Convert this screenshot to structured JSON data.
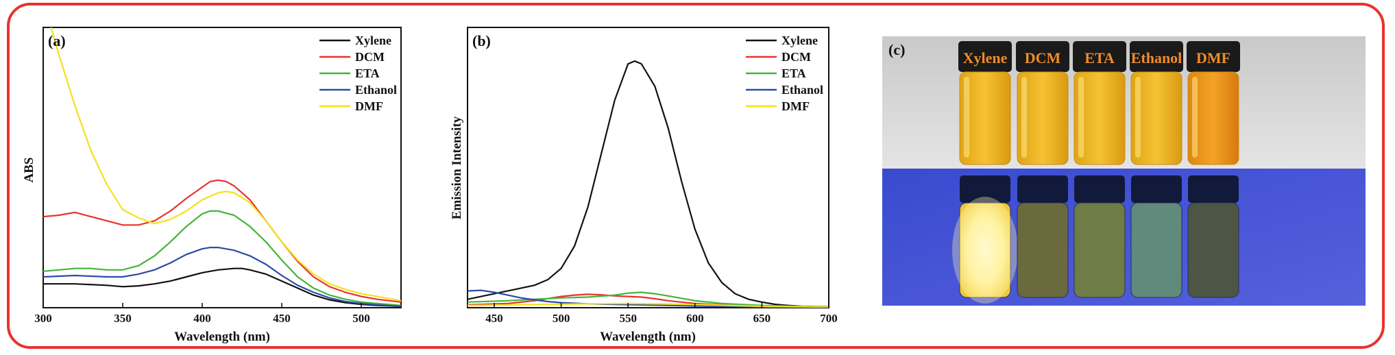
{
  "colors": {
    "Xylene": "#111111",
    "DCM": "#e8322f",
    "ETA": "#45b33a",
    "Ethanol": "#2d4aa6",
    "DMF": "#f2e21b",
    "frame": "#e8322f"
  },
  "chart_data": [
    {
      "type": "line",
      "panel_label": "(a)",
      "xlabel": "Wavelength (nm)",
      "ylabel": "ABS",
      "xlim": [
        300,
        525
      ],
      "ylim": [
        0,
        1.0
      ],
      "xticks": [
        300,
        350,
        400,
        450,
        500
      ],
      "yticks_shown": false,
      "legend_position": "top-right",
      "series": [
        {
          "name": "Xylene",
          "x": [
            300,
            320,
            340,
            350,
            360,
            370,
            380,
            390,
            400,
            410,
            420,
            425,
            430,
            440,
            450,
            460,
            470,
            480,
            490,
            500,
            510,
            525
          ],
          "y": [
            0.085,
            0.085,
            0.08,
            0.075,
            0.078,
            0.085,
            0.095,
            0.11,
            0.125,
            0.135,
            0.14,
            0.14,
            0.135,
            0.12,
            0.095,
            0.07,
            0.045,
            0.028,
            0.018,
            0.012,
            0.008,
            0.005
          ]
        },
        {
          "name": "DCM",
          "x": [
            300,
            310,
            320,
            330,
            340,
            350,
            360,
            370,
            380,
            390,
            400,
            405,
            410,
            415,
            420,
            430,
            440,
            450,
            460,
            470,
            480,
            490,
            500,
            510,
            525
          ],
          "y": [
            0.325,
            0.33,
            0.34,
            0.325,
            0.31,
            0.295,
            0.295,
            0.31,
            0.345,
            0.39,
            0.43,
            0.45,
            0.455,
            0.45,
            0.435,
            0.385,
            0.31,
            0.235,
            0.165,
            0.11,
            0.075,
            0.055,
            0.04,
            0.03,
            0.02
          ]
        },
        {
          "name": "ETA",
          "x": [
            300,
            310,
            320,
            330,
            340,
            350,
            360,
            370,
            380,
            390,
            400,
            405,
            410,
            420,
            430,
            440,
            450,
            460,
            470,
            480,
            490,
            500,
            510,
            525
          ],
          "y": [
            0.13,
            0.135,
            0.14,
            0.14,
            0.135,
            0.135,
            0.15,
            0.185,
            0.235,
            0.29,
            0.335,
            0.345,
            0.345,
            0.33,
            0.29,
            0.235,
            0.17,
            0.11,
            0.07,
            0.045,
            0.03,
            0.02,
            0.015,
            0.008
          ]
        },
        {
          "name": "Ethanol",
          "x": [
            300,
            320,
            340,
            350,
            360,
            370,
            380,
            390,
            400,
            405,
            410,
            420,
            430,
            440,
            450,
            460,
            470,
            480,
            490,
            500,
            510,
            525
          ],
          "y": [
            0.11,
            0.115,
            0.11,
            0.11,
            0.12,
            0.135,
            0.16,
            0.19,
            0.21,
            0.215,
            0.215,
            0.205,
            0.185,
            0.155,
            0.115,
            0.08,
            0.055,
            0.035,
            0.022,
            0.015,
            0.01,
            0.005
          ]
        },
        {
          "name": "DMF",
          "x": [
            305,
            310,
            320,
            330,
            340,
            350,
            360,
            370,
            380,
            390,
            400,
            410,
            415,
            420,
            430,
            440,
            450,
            460,
            470,
            480,
            490,
            500,
            510,
            525
          ],
          "y": [
            1.0,
            0.9,
            0.72,
            0.56,
            0.44,
            0.35,
            0.32,
            0.3,
            0.315,
            0.345,
            0.385,
            0.41,
            0.415,
            0.41,
            0.375,
            0.31,
            0.235,
            0.17,
            0.12,
            0.085,
            0.065,
            0.05,
            0.04,
            0.025
          ]
        }
      ]
    },
    {
      "type": "line",
      "panel_label": "(b)",
      "xlabel": "Wavelength (nm)",
      "ylabel": "Emission Intensity",
      "xlim": [
        430,
        700
      ],
      "ylim": [
        0,
        1.0
      ],
      "xticks": [
        450,
        500,
        550,
        600,
        650,
        700
      ],
      "yticks_shown": false,
      "legend_position": "top-right",
      "series": [
        {
          "name": "Xylene",
          "x": [
            430,
            450,
            470,
            480,
            490,
            500,
            510,
            520,
            530,
            540,
            550,
            555,
            560,
            570,
            580,
            590,
            600,
            610,
            620,
            630,
            640,
            650,
            660,
            670,
            680,
            700
          ],
          "y": [
            0.03,
            0.05,
            0.07,
            0.08,
            0.1,
            0.14,
            0.22,
            0.36,
            0.55,
            0.74,
            0.87,
            0.88,
            0.87,
            0.79,
            0.64,
            0.45,
            0.28,
            0.16,
            0.09,
            0.05,
            0.03,
            0.02,
            0.012,
            0.008,
            0.005,
            0.003
          ]
        },
        {
          "name": "DCM",
          "x": [
            430,
            460,
            480,
            500,
            510,
            520,
            530,
            540,
            550,
            560,
            570,
            580,
            600,
            620,
            650,
            700
          ],
          "y": [
            0.01,
            0.015,
            0.025,
            0.04,
            0.045,
            0.048,
            0.046,
            0.042,
            0.04,
            0.038,
            0.032,
            0.025,
            0.015,
            0.01,
            0.005,
            0.002
          ]
        },
        {
          "name": "ETA",
          "x": [
            430,
            460,
            480,
            500,
            520,
            540,
            550,
            560,
            570,
            580,
            600,
            620,
            650,
            700
          ],
          "y": [
            0.02,
            0.025,
            0.03,
            0.035,
            0.038,
            0.045,
            0.052,
            0.055,
            0.05,
            0.042,
            0.025,
            0.015,
            0.008,
            0.002
          ]
        },
        {
          "name": "Ethanol",
          "x": [
            430,
            440,
            450,
            460,
            470,
            480,
            490,
            500,
            520,
            540,
            560,
            580,
            600,
            650,
            700
          ],
          "y": [
            0.06,
            0.062,
            0.055,
            0.045,
            0.035,
            0.028,
            0.022,
            0.018,
            0.014,
            0.012,
            0.01,
            0.008,
            0.006,
            0.003,
            0.001
          ]
        },
        {
          "name": "DMF",
          "x": [
            430,
            460,
            490,
            520,
            550,
            580,
            610,
            650,
            700
          ],
          "y": [
            0.008,
            0.01,
            0.012,
            0.014,
            0.015,
            0.013,
            0.01,
            0.005,
            0.002
          ]
        }
      ]
    }
  ],
  "photo": {
    "panel_label": "(c)",
    "vial_labels": [
      "Xylene",
      "DCM",
      "ETA",
      "Ethanol",
      "DMF"
    ]
  }
}
